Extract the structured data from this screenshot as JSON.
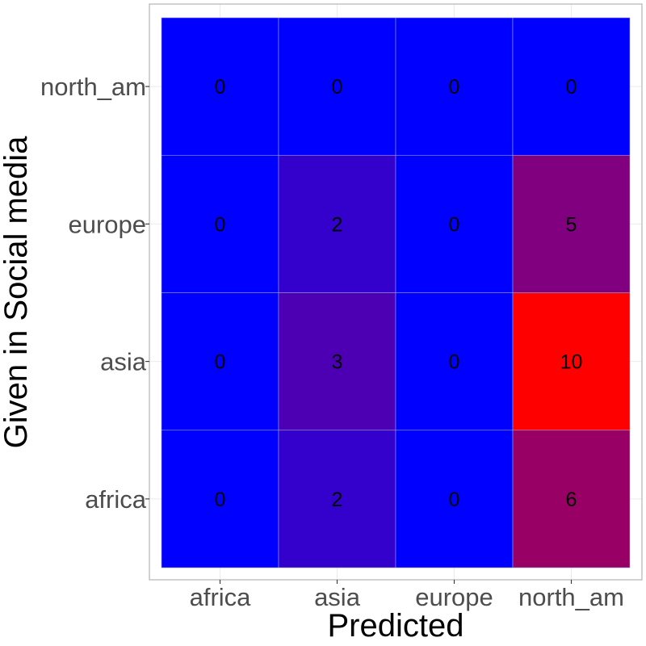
{
  "chart_data": {
    "type": "heatmap",
    "xlabel": "Predicted",
    "ylabel": "Given in Social media",
    "x_categories": [
      "africa",
      "asia",
      "europe",
      "north_am"
    ],
    "y_categories": [
      "africa",
      "asia",
      "europe",
      "north_am"
    ],
    "values": [
      [
        0,
        2,
        0,
        6
      ],
      [
        0,
        3,
        0,
        10
      ],
      [
        0,
        2,
        0,
        5
      ],
      [
        0,
        0,
        0,
        0
      ]
    ],
    "color_low": "#0000ff",
    "color_high": "#ff0000",
    "value_range": [
      0,
      10
    ],
    "grid": true,
    "panel_border": "#b3b3b3",
    "grid_color": "#ebebeb"
  }
}
